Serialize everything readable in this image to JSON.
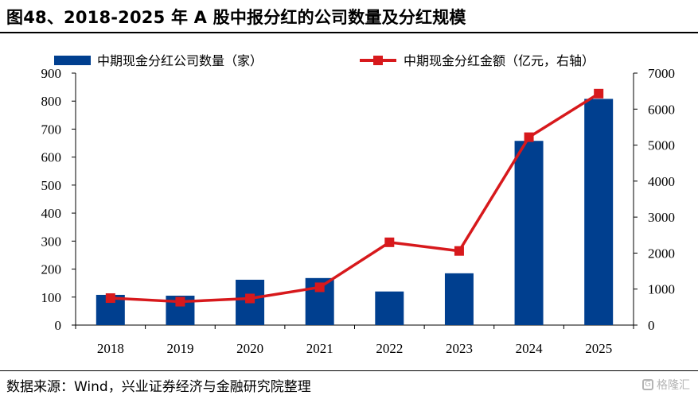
{
  "title": "图48、2018-2025 年 A 股中报分红的公司数量及分红规模",
  "source": "数据来源：Wind，兴业证券经济与金融研究院整理",
  "watermark": {
    "text": "格隆汇",
    "mark": "G"
  },
  "colors": {
    "bar": "#003f8f",
    "line": "#d7191c"
  },
  "chart_data": {
    "type": "bar+line",
    "categories": [
      "2018",
      "2019",
      "2020",
      "2021",
      "2022",
      "2023",
      "2024",
      "2025"
    ],
    "series": [
      {
        "name": "中期现金分红公司数量（家）",
        "type": "bar",
        "axis": "left",
        "values": [
          108,
          105,
          162,
          168,
          120,
          185,
          658,
          808
        ]
      },
      {
        "name": "中期现金分红金额（亿元，右轴）",
        "type": "line",
        "axis": "right",
        "values": [
          750,
          650,
          740,
          1050,
          2300,
          2060,
          5220,
          6430
        ]
      }
    ],
    "ylim_left": [
      0,
      900
    ],
    "yticks_left": [
      "0",
      "100",
      "200",
      "300",
      "400",
      "500",
      "600",
      "700",
      "800",
      "900"
    ],
    "ylim_right": [
      0,
      7000
    ],
    "yticks_right": [
      "0",
      "1000",
      "2000",
      "3000",
      "4000",
      "5000",
      "6000",
      "7000"
    ],
    "grid": false,
    "legend_position": "top"
  }
}
